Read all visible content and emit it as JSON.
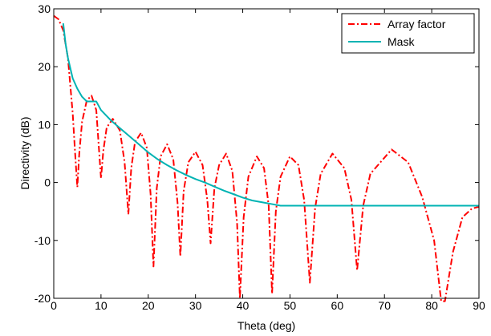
{
  "chart_data": {
    "type": "line",
    "title": "",
    "xlabel": "Theta (deg)",
    "ylabel": "Directivity (dB)",
    "xlim": [
      0,
      90
    ],
    "ylim": [
      -20,
      30
    ],
    "xticks": [
      0,
      10,
      20,
      30,
      40,
      50,
      60,
      70,
      80,
      90
    ],
    "xtick_labels": [
      "0",
      "10",
      "20",
      "30",
      "40",
      "50",
      "60",
      "70",
      "80",
      "90"
    ],
    "yticks": [
      -20,
      -10,
      0,
      10,
      20,
      30
    ],
    "ytick_labels": [
      "-20",
      "-10",
      "0",
      "10",
      "20",
      "30"
    ],
    "grid": false,
    "legend_position": "top-right",
    "series": [
      {
        "name": "Array factor",
        "color": "#ff0000",
        "line_style": "dash-dot",
        "points": [
          [
            0,
            28.8
          ],
          [
            1,
            28.2
          ],
          [
            2,
            26.3
          ],
          [
            3,
            21.5
          ],
          [
            4,
            12.0
          ],
          [
            4.6,
            4.0
          ],
          [
            5.0,
            -0.8
          ],
          [
            5.4,
            5.0
          ],
          [
            6.0,
            10.5
          ],
          [
            7.0,
            14.2
          ],
          [
            8.0,
            15.0
          ],
          [
            9.0,
            12.5
          ],
          [
            9.6,
            5.5
          ],
          [
            10.0,
            0.7
          ],
          [
            10.5,
            5.5
          ],
          [
            11.2,
            9.5
          ],
          [
            12.5,
            11.0
          ],
          [
            14.0,
            9.0
          ],
          [
            15.0,
            3.5
          ],
          [
            15.8,
            -5.5
          ],
          [
            16.4,
            2.5
          ],
          [
            17.2,
            7.0
          ],
          [
            18.5,
            8.6
          ],
          [
            19.7,
            6.0
          ],
          [
            20.5,
            -2.0
          ],
          [
            21.1,
            -14.5
          ],
          [
            21.8,
            -1.0
          ],
          [
            22.6,
            4.5
          ],
          [
            24.0,
            6.6
          ],
          [
            25.3,
            4.0
          ],
          [
            26.2,
            -3.5
          ],
          [
            26.8,
            -12.8
          ],
          [
            27.5,
            -1.5
          ],
          [
            28.5,
            3.5
          ],
          [
            30.0,
            5.3
          ],
          [
            31.5,
            3.0
          ],
          [
            32.5,
            -3.0
          ],
          [
            33.2,
            -10.5
          ],
          [
            34.0,
            -1.0
          ],
          [
            35.0,
            3.0
          ],
          [
            36.5,
            5.0
          ],
          [
            37.8,
            2.0
          ],
          [
            38.8,
            -7.0
          ],
          [
            39.4,
            -20.0
          ],
          [
            40.2,
            -6.0
          ],
          [
            41.2,
            1.0
          ],
          [
            43.0,
            4.5
          ],
          [
            44.5,
            2.5
          ],
          [
            45.5,
            -4.0
          ],
          [
            46.2,
            -19.2
          ],
          [
            47.0,
            -5.0
          ],
          [
            48.0,
            1.0
          ],
          [
            50.0,
            4.5
          ],
          [
            51.8,
            3.0
          ],
          [
            53.0,
            -3.0
          ],
          [
            54.2,
            -17.3
          ],
          [
            55.3,
            -4.5
          ],
          [
            56.5,
            1.5
          ],
          [
            59.0,
            5.0
          ],
          [
            61.5,
            2.5
          ],
          [
            63.0,
            -3.0
          ],
          [
            64.2,
            -15.2
          ],
          [
            65.5,
            -4.0
          ],
          [
            67.0,
            1.5
          ],
          [
            71.5,
            5.7
          ],
          [
            75.0,
            3.5
          ],
          [
            78.0,
            -2.5
          ],
          [
            80.5,
            -10.0
          ],
          [
            82.0,
            -20.5
          ],
          [
            82.8,
            -20.5
          ],
          [
            84.5,
            -12.0
          ],
          [
            86.5,
            -6.0
          ],
          [
            88.5,
            -4.5
          ],
          [
            90.0,
            -4.2
          ]
        ]
      },
      {
        "name": "Mask",
        "color": "#00b3b3",
        "line_style": "solid",
        "points": [
          [
            2.0,
            27.5
          ],
          [
            2.5,
            24.0
          ],
          [
            3.0,
            21.5
          ],
          [
            4.0,
            18.0
          ],
          [
            5.0,
            16.2
          ],
          [
            6.0,
            14.8
          ],
          [
            7.0,
            14.0
          ],
          [
            9.0,
            14.0
          ],
          [
            10.0,
            12.5
          ],
          [
            12.0,
            10.8
          ],
          [
            14.0,
            9.4
          ],
          [
            16.0,
            8.0
          ],
          [
            18.0,
            6.6
          ],
          [
            20.0,
            5.2
          ],
          [
            22.0,
            4.0
          ],
          [
            24.0,
            3.0
          ],
          [
            26.0,
            2.1
          ],
          [
            28.0,
            1.3
          ],
          [
            30.0,
            0.6
          ],
          [
            32.0,
            0.0
          ],
          [
            34.0,
            -0.7
          ],
          [
            36.0,
            -1.4
          ],
          [
            38.0,
            -2.0
          ],
          [
            40.0,
            -2.6
          ],
          [
            42.0,
            -3.1
          ],
          [
            44.0,
            -3.4
          ],
          [
            46.0,
            -3.7
          ],
          [
            48.0,
            -4.0
          ],
          [
            90.0,
            -4.0
          ]
        ]
      }
    ]
  }
}
